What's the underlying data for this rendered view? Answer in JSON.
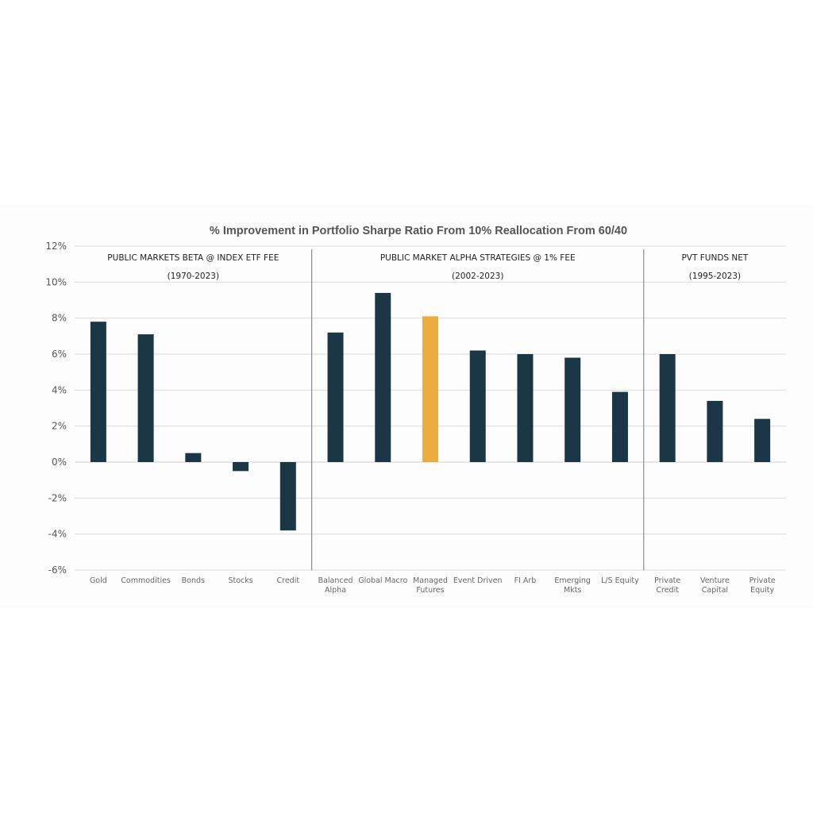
{
  "chart_data": {
    "type": "bar",
    "title": "% Improvement in Portfolio Sharpe Ratio From 10% Reallocation From 60/40",
    "xlabel": "",
    "ylabel": "",
    "ylim": [
      -6,
      12
    ],
    "yticks": [
      -6,
      -4,
      -2,
      0,
      2,
      4,
      6,
      8,
      10,
      12
    ],
    "ytick_suffix": "%",
    "grid": true,
    "colors": {
      "default": "#1b3644",
      "highlight": "#e9ad42"
    },
    "categories": [
      [
        "Gold"
      ],
      [
        "Commodities"
      ],
      [
        "Bonds"
      ],
      [
        "Stocks"
      ],
      [
        "Credit"
      ],
      [
        "Balanced",
        "Alpha"
      ],
      [
        "Global Macro"
      ],
      [
        "Managed",
        "Futures"
      ],
      [
        "Event Driven"
      ],
      [
        "FI Arb"
      ],
      [
        "Emerging",
        "Mkts"
      ],
      [
        "L/S Equity"
      ],
      [
        "Private",
        "Credit"
      ],
      [
        "Venture",
        "Capital"
      ],
      [
        "Private",
        "Equity"
      ]
    ],
    "values": [
      7.8,
      7.1,
      0.5,
      -0.5,
      -3.8,
      7.2,
      9.4,
      8.1,
      6.2,
      6.0,
      5.8,
      3.9,
      6.0,
      3.4,
      2.4
    ],
    "highlight_index": 7,
    "groups": [
      {
        "line1": "PUBLIC MARKETS BETA @ INDEX ETF FEE",
        "line2": "(1970-2023)",
        "start": 0,
        "end": 4
      },
      {
        "line1": "PUBLIC MARKET ALPHA STRATEGIES @ 1% FEE",
        "line2": "(2002-2023)",
        "start": 5,
        "end": 11
      },
      {
        "line1": "PVT FUNDS NET",
        "line2": "(1995-2023)",
        "start": 12,
        "end": 14
      }
    ]
  }
}
